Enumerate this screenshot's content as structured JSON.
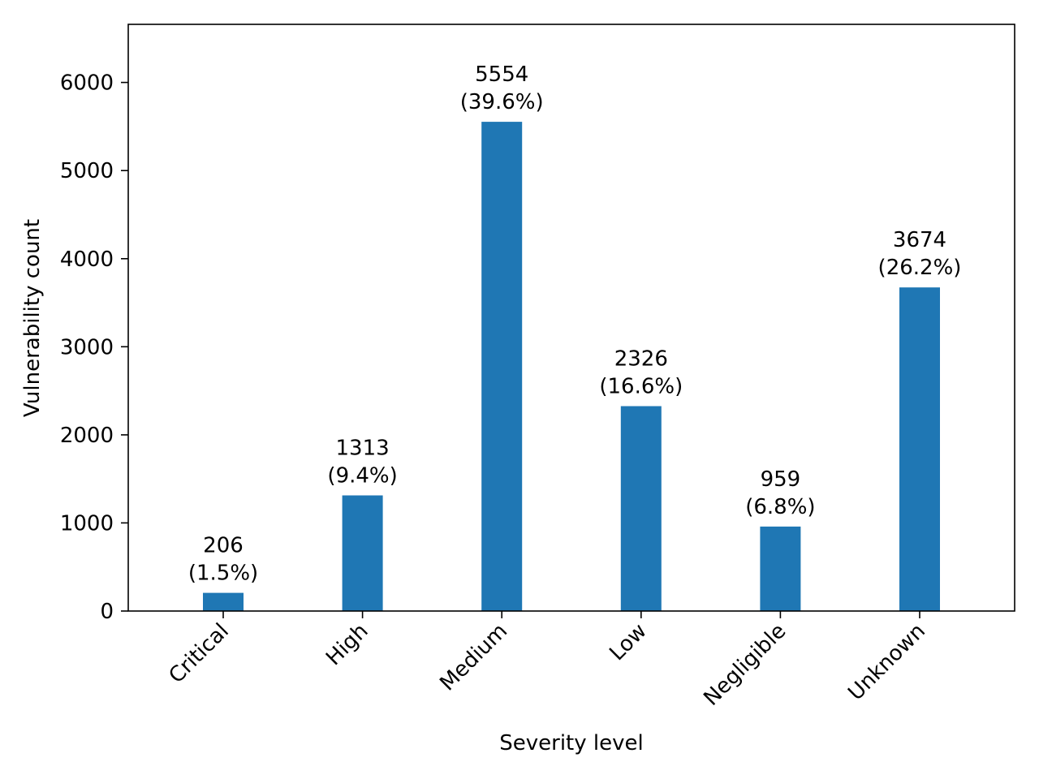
{
  "chart_data": {
    "type": "bar",
    "title": "",
    "xlabel": "Severity level",
    "ylabel": "Vulnerability count",
    "ylim": [
      0,
      6660
    ],
    "yticks": [
      0,
      1000,
      2000,
      3000,
      4000,
      5000,
      6000
    ],
    "ytick_labels": [
      "0",
      "1000",
      "2000",
      "3000",
      "4000",
      "5000",
      "6000"
    ],
    "categories": [
      "Critical",
      "High",
      "Medium",
      "Low",
      "Negligible",
      "Unknown"
    ],
    "values": [
      206,
      1313,
      5554,
      2326,
      959,
      3674
    ],
    "percent_labels": [
      "(1.5%)",
      "(9.4%)",
      "(39.6%)",
      "(16.6%)",
      "(6.8%)",
      "(26.2%)"
    ],
    "value_labels": [
      "206",
      "1313",
      "5554",
      "2326",
      "959",
      "3674"
    ],
    "bar_color": "#1f77b4",
    "grid": false
  }
}
